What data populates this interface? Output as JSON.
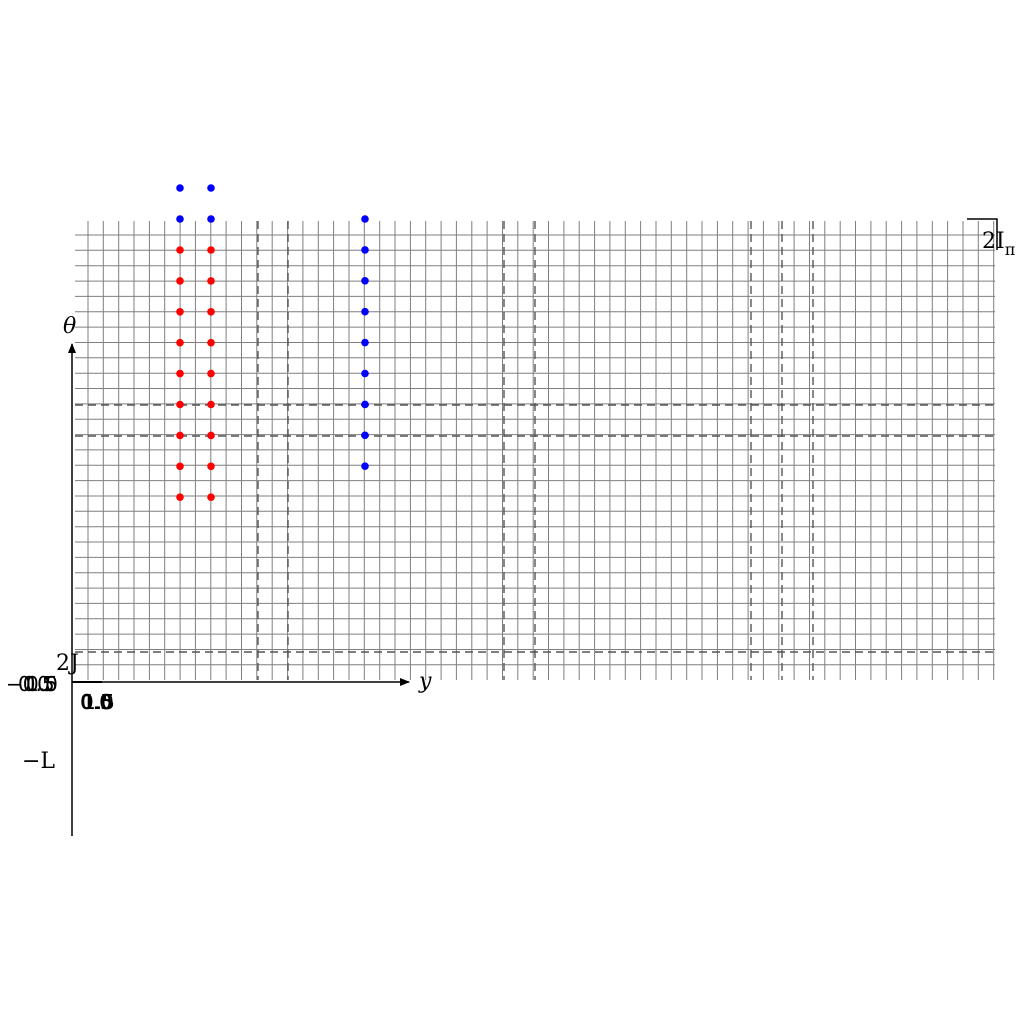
{
  "labels": {
    "theta": "θ",
    "y": "y",
    "two_J": "2J",
    "minus_L": "−L",
    "two_I_pi": "2I",
    "pi_sub": "π"
  },
  "tick_overlaps": {
    "left": [
      "−0.5",
      "0.0",
      "0.5",
      "1.0"
    ],
    "bottom": [
      "0.0",
      "0.5",
      "1.0",
      "1.5"
    ]
  },
  "colors": {
    "grid": "#7f7f7f",
    "red_dots": "#ff0000",
    "blue_dots": "#0000ff",
    "axis": "#000000"
  }
}
